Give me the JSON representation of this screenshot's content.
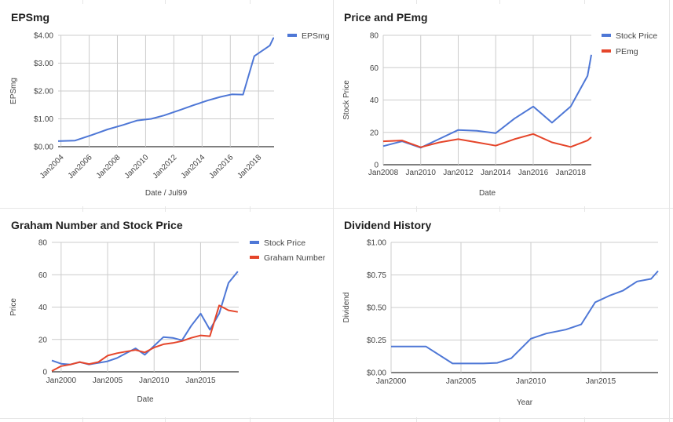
{
  "colors": {
    "blue": "#4e77d6",
    "red": "#e5452a",
    "grid": "#cccccc",
    "text": "#444444",
    "axis": "#333333"
  },
  "chart_data": [
    {
      "type": "line",
      "title": "EPSmg",
      "xlabel": "Date / Jul99",
      "ylabel": "EPSmg",
      "x_ticks": [
        "Jan2004",
        "Jan2006",
        "Jan2008",
        "Jan2010",
        "Jan2012",
        "Jan2014",
        "Jan2016",
        "Jan2018"
      ],
      "x_tick_values": [
        2004,
        2006,
        2008,
        2010,
        2012,
        2014,
        2016,
        2018
      ],
      "y_ticks": [
        "$0.00",
        "$1.00",
        "$2.00",
        "$3.00",
        "$4.00"
      ],
      "xlim": [
        2003.8,
        2019.1
      ],
      "ylim": [
        0,
        4
      ],
      "legend": "right",
      "legend_entries": [
        "EPSmg"
      ],
      "series": [
        {
          "name": "EPSmg",
          "color": "blue",
          "x": [
            2003.8,
            2005.0,
            2006.2,
            2007.3,
            2008.4,
            2009.4,
            2010.4,
            2011.3,
            2012.5,
            2013.4,
            2014.4,
            2015.3,
            2016.1,
            2016.9,
            2017.7,
            2018.8,
            2019.05,
            2019.1
          ],
          "y": [
            0.2,
            0.22,
            0.42,
            0.62,
            0.78,
            0.94,
            1.0,
            1.12,
            1.33,
            1.49,
            1.66,
            1.79,
            1.88,
            1.87,
            3.25,
            3.63,
            3.9,
            3.9
          ]
        }
      ]
    },
    {
      "type": "line",
      "title": "Price and PEmg",
      "xlabel": "Date",
      "ylabel": "Stock Price",
      "x_ticks": [
        "Jan2008",
        "Jan2010",
        "Jan2012",
        "Jan2014",
        "Jan2016",
        "Jan2018"
      ],
      "x_tick_values": [
        2008,
        2010,
        2012,
        2014,
        2016,
        2018
      ],
      "y_ticks": [
        "0",
        "20",
        "40",
        "60",
        "80"
      ],
      "xlim": [
        2008,
        2019.1
      ],
      "ylim": [
        0,
        80
      ],
      "legend": "right",
      "legend_entries": [
        "Stock Price",
        "PEmg"
      ],
      "series": [
        {
          "name": "Stock Price",
          "color": "blue",
          "x": [
            2008,
            2009,
            2010,
            2011,
            2012,
            2013,
            2014,
            2015,
            2016,
            2017,
            2018,
            2018.9,
            2019.1
          ],
          "y": [
            11.5,
            14.5,
            10.5,
            16,
            21.5,
            21,
            19.5,
            28.5,
            36,
            26,
            36,
            55,
            68
          ]
        },
        {
          "name": "PEmg",
          "color": "red",
          "x": [
            2008,
            2009,
            2010,
            2011,
            2012,
            2013,
            2014,
            2015,
            2016,
            2017,
            2018,
            2018.9,
            2019.1
          ],
          "y": [
            14.5,
            15,
            10.8,
            13.8,
            15.8,
            13.8,
            11.8,
            15.8,
            19,
            13.8,
            11,
            15,
            17
          ]
        }
      ]
    },
    {
      "type": "line",
      "title": "Graham Number and Stock Price",
      "xlabel": "Date",
      "ylabel": "Price",
      "x_ticks": [
        "Jan2000",
        "Jan2005",
        "Jan2010",
        "Jan2015"
      ],
      "x_tick_values": [
        2000,
        2005,
        2010,
        2015
      ],
      "y_ticks": [
        "0",
        "20",
        "40",
        "60",
        "80"
      ],
      "xlim": [
        1999.0,
        2019.1
      ],
      "ylim": [
        0,
        80
      ],
      "legend": "right",
      "legend_entries": [
        "Stock Price",
        "Graham Number"
      ],
      "series": [
        {
          "name": "Stock Price",
          "color": "blue",
          "x": [
            1999.0,
            2000.0,
            2001.0,
            2002.0,
            2003.0,
            2004.0,
            2005.0,
            2006.0,
            2007.0,
            2008.0,
            2009.0,
            2010.0,
            2011.0,
            2012.0,
            2013.0,
            2014.0,
            2015.0,
            2016.0,
            2017.0,
            2018.0,
            2019.0
          ],
          "y": [
            7,
            5,
            4.5,
            6,
            4.5,
            5.5,
            6.5,
            8.5,
            11.5,
            14.5,
            10.5,
            16,
            21.5,
            21,
            19.5,
            28.5,
            36,
            26,
            36,
            55,
            62
          ]
        },
        {
          "name": "Graham Number",
          "color": "red",
          "x": [
            1999.0,
            2000.0,
            2001.0,
            2002.0,
            2003.0,
            2004.0,
            2005.0,
            2006.0,
            2007.0,
            2008.0,
            2009.0,
            2010.0,
            2011.0,
            2012.0,
            2013.0,
            2014.0,
            2015.0,
            2016.0,
            2017.0,
            2018.0,
            2019.0
          ],
          "y": [
            0.5,
            3.5,
            4.5,
            6,
            4.8,
            6,
            10,
            11.5,
            12.5,
            13.5,
            12,
            15,
            17,
            17.8,
            19,
            21,
            22.5,
            22,
            41,
            38,
            37
          ]
        }
      ]
    },
    {
      "type": "line",
      "title": "Dividend History",
      "xlabel": "Year",
      "ylabel": "Dividend",
      "x_ticks": [
        "Jan2000",
        "Jan2005",
        "Jan2010",
        "Jan2015"
      ],
      "x_tick_values": [
        2000,
        2005,
        2010,
        2015
      ],
      "y_ticks": [
        "$0.00",
        "$0.25",
        "$0.50",
        "$0.75",
        "$1.00"
      ],
      "xlim": [
        2000,
        2019.1
      ],
      "ylim": [
        0,
        1
      ],
      "series": [
        {
          "name": "",
          "color": "blue",
          "x": [
            2000,
            2001,
            2002.5,
            2004.4,
            2005.6,
            2006.6,
            2007.6,
            2008.6,
            2010.0,
            2011.1,
            2012.5,
            2013.6,
            2014.6,
            2015.6,
            2016.6,
            2017.6,
            2018.6,
            2019.1
          ],
          "y": [
            0.2,
            0.2,
            0.2,
            0.07,
            0.07,
            0.07,
            0.075,
            0.11,
            0.26,
            0.3,
            0.33,
            0.37,
            0.54,
            0.59,
            0.63,
            0.7,
            0.72,
            0.78
          ]
        }
      ]
    }
  ]
}
